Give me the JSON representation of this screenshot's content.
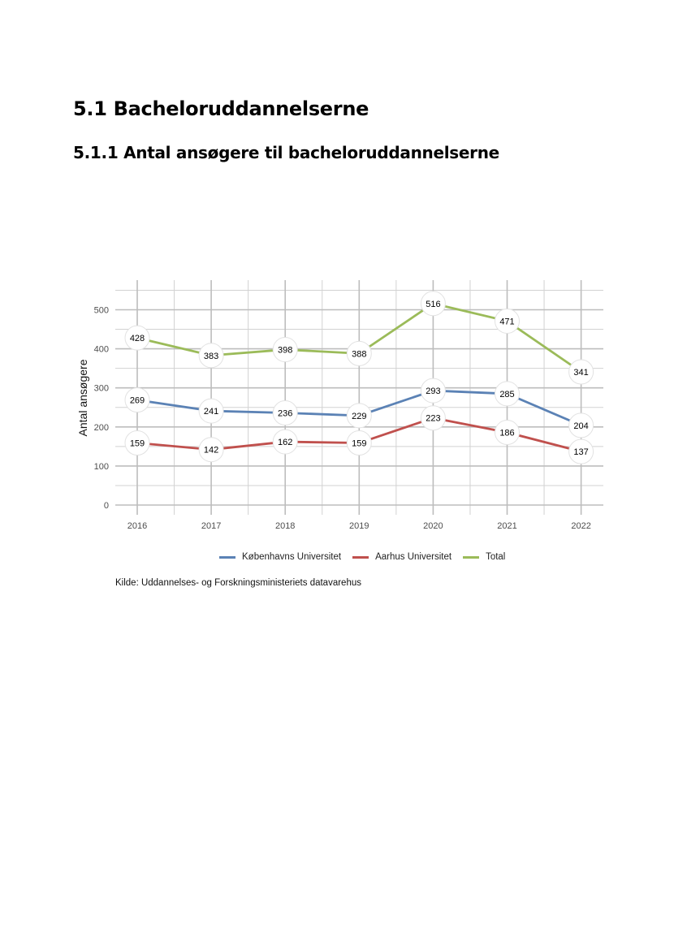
{
  "page": {
    "heading1": "5.1 Bacheloruddannelserne",
    "heading2": "5.1.1 Antal ansøgere til bacheloruddannelserne",
    "source": "Kilde: Uddannelses- og Forskningsministeriets datavarehus"
  },
  "chart_data": {
    "type": "line",
    "title": "",
    "xlabel": "",
    "ylabel": "Antal ansøgere",
    "x": [
      "2016",
      "2017",
      "2018",
      "2019",
      "2020",
      "2021",
      "2022"
    ],
    "ylim": [
      0,
      550
    ],
    "yticks": [
      0,
      100,
      200,
      300,
      400,
      500
    ],
    "grid": true,
    "legend_position": "bottom",
    "series": [
      {
        "name": "Københavns Universitet",
        "color": "#5b82b5",
        "values": [
          269,
          241,
          236,
          229,
          293,
          285,
          204
        ]
      },
      {
        "name": "Aarhus Universitet",
        "color": "#c0504d",
        "values": [
          159,
          142,
          162,
          159,
          223,
          186,
          137
        ]
      },
      {
        "name": "Total",
        "color": "#9bbb59",
        "values": [
          428,
          383,
          398,
          388,
          516,
          471,
          341
        ]
      }
    ]
  }
}
